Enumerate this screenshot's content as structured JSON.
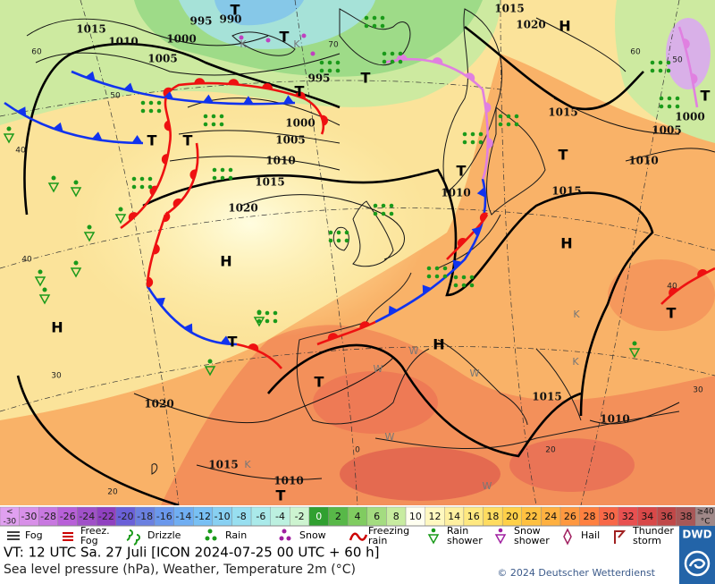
{
  "map": {
    "isobar_labels": [
      "1015",
      "1010",
      "1005",
      "1000",
      "995",
      "990",
      "995",
      "1015",
      "1020",
      "1000",
      "1005",
      "1010",
      "1015",
      "1020",
      "1010",
      "1015",
      "1015",
      "1005",
      "1010",
      "1000",
      "1015",
      "1010",
      "1020",
      "1015",
      "1010"
    ],
    "pressure_systems": [
      "T",
      "T",
      "T",
      "T",
      "T",
      "T",
      "T",
      "T",
      "T",
      "T",
      "T",
      "T",
      "T",
      "H",
      "H",
      "H",
      "H",
      "H"
    ],
    "region_marks": [
      "K",
      "K",
      "K",
      "K",
      "K",
      "W",
      "W",
      "W",
      "W",
      "W"
    ],
    "graticule_labels": [
      "60",
      "50",
      "40",
      "40",
      "30",
      "20",
      "0",
      "20",
      "60",
      "50",
      "40",
      "30",
      "70"
    ]
  },
  "temperature_scale": {
    "low_label": [
      "<",
      "-30"
    ],
    "labels": [
      "-30",
      "-28",
      "-26",
      "-24",
      "-22",
      "-20",
      "-18",
      "-16",
      "-14",
      "-12",
      "-10",
      "-8",
      "-6",
      "-4",
      "-2",
      "0",
      "2",
      "4",
      "6",
      "8",
      "10",
      "12",
      "14",
      "16",
      "18",
      "20",
      "22",
      "24",
      "26",
      "28",
      "30",
      "32",
      "34",
      "36",
      "38"
    ],
    "high_label": [
      "≥40",
      "°C"
    ]
  },
  "weather_legend": [
    "Fog",
    "Freez.\nFog",
    "Drizzle",
    "Rain",
    "Snow",
    "Freezing\nrain",
    "Rain\nshower",
    "Snow\nshower",
    "Hail",
    "Thunder\nstorm"
  ],
  "footer": {
    "valid_time": "VT: 12 UTC Sa.  27 Juli [ICON 2024-07-25  00 UTC + 60 h]",
    "description": "Sea level pressure (hPa), Weather, Temperature 2m (°C)",
    "copyright": "© 2024 Deutscher Wetterdienst",
    "logo": "DWD"
  }
}
